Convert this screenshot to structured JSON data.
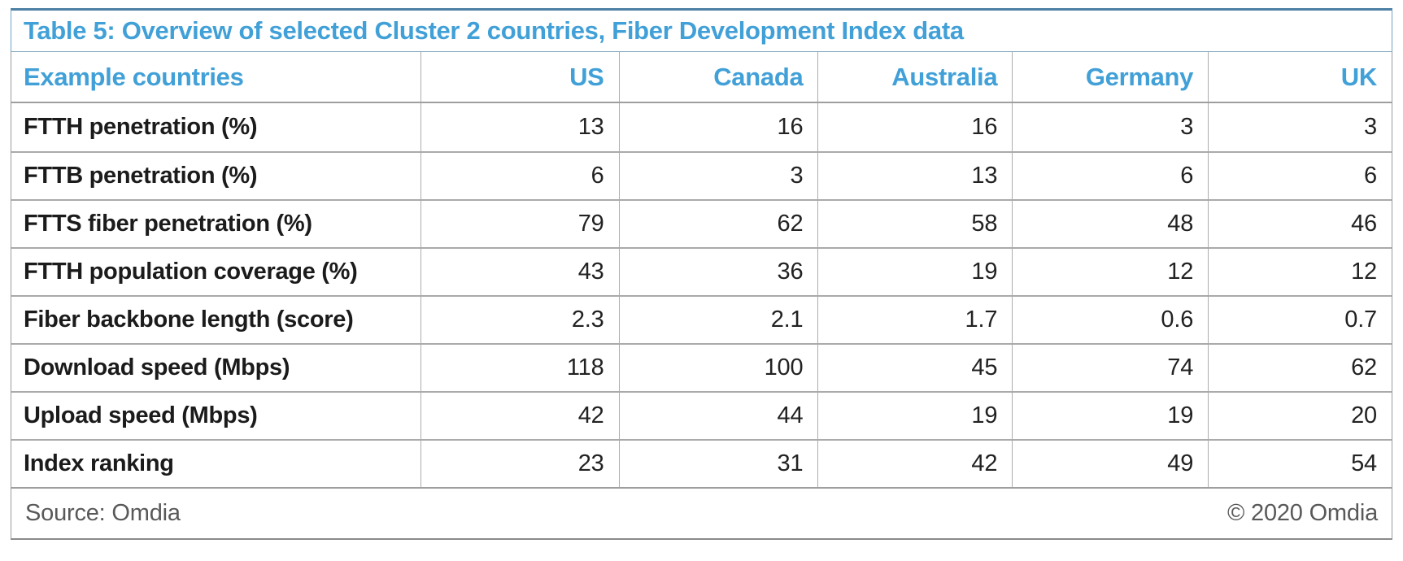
{
  "title": "Table 5: Overview of selected Cluster 2 countries, Fiber Development Index data",
  "colors": {
    "accent_blue_text": "#41a0d7",
    "title_border_blue": "#4d80a4",
    "grid_gray": "#acacac",
    "label_black": "#1b1b1b",
    "footer_gray": "#595959"
  },
  "table": {
    "corner_label": "Example countries",
    "columns": [
      "US",
      "Canada",
      "Australia",
      "Germany",
      "UK"
    ],
    "rows": [
      {
        "label": "FTTH penetration (%)",
        "values": [
          "13",
          "16",
          "16",
          "3",
          "3"
        ]
      },
      {
        "label": "FTTB penetration (%)",
        "values": [
          "6",
          "3",
          "13",
          "6",
          "6"
        ]
      },
      {
        "label": "FTTS fiber penetration (%)",
        "values": [
          "79",
          "62",
          "58",
          "48",
          "46"
        ]
      },
      {
        "label": "FTTH population coverage (%)",
        "values": [
          "43",
          "36",
          "19",
          "12",
          "12"
        ]
      },
      {
        "label": "Fiber backbone length (score)",
        "values": [
          "2.3",
          "2.1",
          "1.7",
          "0.6",
          "0.7"
        ]
      },
      {
        "label": "Download speed (Mbps)",
        "values": [
          "118",
          "100",
          "45",
          "74",
          "62"
        ]
      },
      {
        "label": "Upload speed (Mbps)",
        "values": [
          "42",
          "44",
          "19",
          "19",
          "20"
        ]
      },
      {
        "label": "Index ranking",
        "values": [
          "23",
          "31",
          "42",
          "49",
          "54"
        ]
      }
    ]
  },
  "footer": {
    "source": "Source: Omdia",
    "copyright": "© 2020 Omdia"
  }
}
